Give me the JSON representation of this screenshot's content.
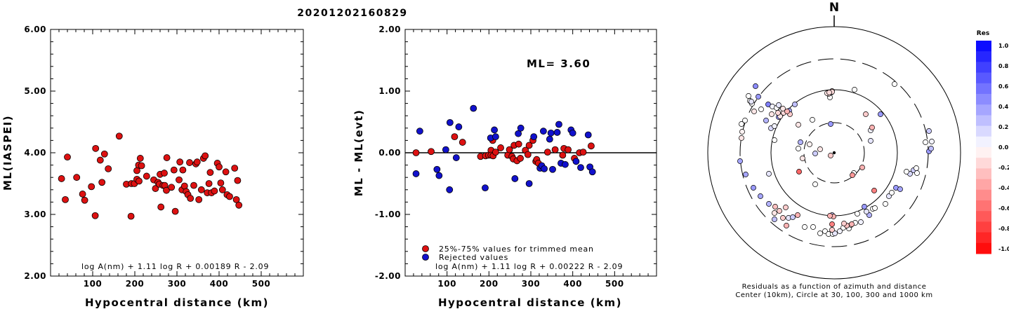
{
  "figure_title": "20201202160829",
  "colors": {
    "red": "#dd1111",
    "blue": "#1111cc"
  },
  "chart_data": [
    {
      "type": "scatter",
      "name": "ml-iaspei-vs-distance",
      "xlabel": "Hypocentral distance (km)",
      "ylabel": "ML(IASPEI)",
      "xlim": [
        0,
        600
      ],
      "ylim": [
        2.0,
        6.0
      ],
      "xticks": [
        "100",
        "200",
        "300",
        "400",
        "500"
      ],
      "yticks": [
        "2.00",
        "3.00",
        "4.00",
        "5.00",
        "6.00"
      ],
      "annotation": "log A(nm) + 1.11 log R + 0.00189 R - 2.09",
      "points": [
        [
          26,
          3.58
        ],
        [
          35,
          3.24
        ],
        [
          40,
          3.93
        ],
        [
          62,
          3.6
        ],
        [
          76,
          3.33
        ],
        [
          81,
          3.23
        ],
        [
          97,
          3.45
        ],
        [
          106,
          2.98
        ],
        [
          107,
          4.07
        ],
        [
          118,
          3.88
        ],
        [
          122,
          3.52
        ],
        [
          128,
          3.98
        ],
        [
          137,
          3.74
        ],
        [
          163,
          4.27
        ],
        [
          180,
          3.49
        ],
        [
          191,
          2.97
        ],
        [
          192,
          3.5
        ],
        [
          199,
          3.5
        ],
        [
          205,
          3.57
        ],
        [
          205,
          3.71
        ],
        [
          209,
          3.8
        ],
        [
          210,
          3.54
        ],
        [
          213,
          3.91
        ],
        [
          216,
          3.79
        ],
        [
          228,
          3.62
        ],
        [
          245,
          3.56
        ],
        [
          249,
          3.42
        ],
        [
          255,
          3.52
        ],
        [
          258,
          3.49
        ],
        [
          260,
          3.65
        ],
        [
          262,
          3.12
        ],
        [
          267,
          3.47
        ],
        [
          270,
          3.67
        ],
        [
          271,
          3.47
        ],
        [
          275,
          3.39
        ],
        [
          276,
          3.92
        ],
        [
          287,
          3.44
        ],
        [
          293,
          3.72
        ],
        [
          296,
          3.05
        ],
        [
          305,
          3.56
        ],
        [
          307,
          3.85
        ],
        [
          312,
          3.4
        ],
        [
          314,
          3.72
        ],
        [
          318,
          3.46
        ],
        [
          322,
          3.37
        ],
        [
          326,
          3.32
        ],
        [
          330,
          3.84
        ],
        [
          332,
          3.26
        ],
        [
          340,
          3.47
        ],
        [
          345,
          3.82
        ],
        [
          348,
          3.85
        ],
        [
          352,
          3.24
        ],
        [
          358,
          3.4
        ],
        [
          363,
          3.91
        ],
        [
          367,
          3.95
        ],
        [
          372,
          3.35
        ],
        [
          376,
          3.5
        ],
        [
          379,
          3.68
        ],
        [
          382,
          3.35
        ],
        [
          389,
          3.38
        ],
        [
          396,
          3.83
        ],
        [
          400,
          3.77
        ],
        [
          404,
          3.51
        ],
        [
          408,
          3.4
        ],
        [
          416,
          3.69
        ],
        [
          419,
          3.32
        ],
        [
          425,
          3.29
        ],
        [
          437,
          3.75
        ],
        [
          441,
          3.24
        ],
        [
          444,
          3.55
        ],
        [
          447,
          3.15
        ]
      ]
    },
    {
      "type": "scatter",
      "name": "ml-residual-vs-distance",
      "xlabel": "Hypocentral distance (km)",
      "ylabel": "ML - ML(evt)",
      "xlim": [
        0,
        600
      ],
      "ylim": [
        -2.0,
        2.0
      ],
      "xticks": [
        "100",
        "200",
        "300",
        "400",
        "500"
      ],
      "yticks": [
        "-2.00",
        "-1.00",
        "0.00",
        "1.00",
        "2.00"
      ],
      "ml_text": "ML= 3.60",
      "legend": [
        "25%-75% values for trimmed mean",
        "Rejected values"
      ],
      "legend_position": "bottom-left",
      "annotation": "log A(nm) + 1.11 log R + 0.00222 R - 2.09",
      "series": [
        {
          "name": "25%-75% values for trimmed mean",
          "color": "#dd1111",
          "points": [
            [
              26,
              0.0
            ],
            [
              62,
              0.02
            ],
            [
              118,
              0.26
            ],
            [
              137,
              0.17
            ],
            [
              180,
              -0.06
            ],
            [
              192,
              -0.05
            ],
            [
              199,
              -0.04
            ],
            [
              205,
              0.04
            ],
            [
              205,
              -0.04
            ],
            [
              209,
              0.2
            ],
            [
              210,
              -0.05
            ],
            [
              216,
              0.01
            ],
            [
              228,
              0.08
            ],
            [
              245,
              -0.04
            ],
            [
              249,
              0.05
            ],
            [
              255,
              -0.06
            ],
            [
              258,
              -0.1
            ],
            [
              260,
              0.12
            ],
            [
              267,
              -0.13
            ],
            [
              271,
              0.14
            ],
            [
              275,
              -0.09
            ],
            [
              287,
              0.04
            ],
            [
              293,
              -0.03
            ],
            [
              296,
              0.12
            ],
            [
              305,
              0.2
            ],
            [
              312,
              -0.14
            ],
            [
              314,
              -0.11
            ],
            [
              318,
              -0.17
            ],
            [
              340,
              0.01
            ],
            [
              358,
              0.05
            ],
            [
              376,
              -0.04
            ],
            [
              379,
              0.07
            ],
            [
              389,
              0.05
            ],
            [
              404,
              -0.09
            ],
            [
              416,
              0.0
            ],
            [
              425,
              0.01
            ],
            [
              444,
              0.11
            ]
          ]
        },
        {
          "name": "Rejected values",
          "color": "#1111cc",
          "points": [
            [
              26,
              -0.34
            ],
            [
              35,
              0.35
            ],
            [
              76,
              -0.27
            ],
            [
              81,
              -0.37
            ],
            [
              97,
              0.05
            ],
            [
              106,
              -0.6
            ],
            [
              107,
              0.49
            ],
            [
              122,
              -0.08
            ],
            [
              128,
              0.42
            ],
            [
              163,
              0.72
            ],
            [
              191,
              -0.57
            ],
            [
              204,
              0.24
            ],
            [
              213,
              0.37
            ],
            [
              216,
              0.26
            ],
            [
              262,
              -0.42
            ],
            [
              270,
              0.31
            ],
            [
              276,
              0.4
            ],
            [
              296,
              -0.5
            ],
            [
              307,
              0.26
            ],
            [
              322,
              -0.25
            ],
            [
              326,
              -0.21
            ],
            [
              330,
              0.35
            ],
            [
              332,
              -0.26
            ],
            [
              345,
              0.22
            ],
            [
              348,
              0.32
            ],
            [
              352,
              -0.27
            ],
            [
              363,
              0.33
            ],
            [
              367,
              0.46
            ],
            [
              372,
              -0.17
            ],
            [
              382,
              -0.19
            ],
            [
              396,
              0.37
            ],
            [
              400,
              0.32
            ],
            [
              408,
              -0.14
            ],
            [
              419,
              -0.24
            ],
            [
              437,
              0.29
            ],
            [
              441,
              -0.23
            ],
            [
              447,
              -0.31
            ]
          ]
        }
      ]
    },
    {
      "type": "scatter",
      "name": "azimuth-distance-residuals",
      "north_label": "N",
      "caption_line1": "Residuals as a function of azimuth and distance",
      "caption_line2": "Center (10km), Circle at 30, 100, 300 and 1000 km",
      "colorbar_title": "Res",
      "colorbar_ticks": [
        "1.0",
        "0.8",
        "0.6",
        "0.4",
        "0.2",
        "0.0",
        "-0.2",
        "-0.4",
        "-0.6",
        "-0.8",
        "-1.0"
      ],
      "points": [
        [
          -97,
          -46,
          0.3
        ],
        [
          -79,
          -51,
          0.4
        ],
        [
          -64,
          -60,
          0.35
        ],
        [
          -90,
          -35,
          0.15
        ],
        [
          -85,
          -38,
          0.05
        ],
        [
          -56,
          -69,
          0.25
        ],
        [
          -112,
          -95,
          0.45
        ],
        [
          -108,
          -80,
          0.4
        ],
        [
          -104,
          -62,
          0.0
        ],
        [
          -94,
          -69,
          0.5
        ],
        [
          -88,
          -66,
          0.05
        ],
        [
          -82,
          -64,
          0.0
        ],
        [
          -79,
          -68,
          0.1
        ],
        [
          -75,
          -61,
          0.0
        ],
        [
          -120,
          -74,
          0.0
        ],
        [
          -117,
          -70,
          0.0
        ],
        [
          -122,
          -81,
          0.0
        ],
        [
          -127,
          -46,
          0.0
        ],
        [
          -132,
          -41,
          0.0
        ],
        [
          -118,
          -73,
          0.1
        ],
        [
          -6,
          -79,
          0.0
        ],
        [
          -4,
          -86,
          0.1
        ],
        [
          29,
          -90,
          0.0
        ],
        [
          86,
          -98,
          0.0
        ],
        [
          66,
          -55,
          0.4
        ],
        [
          -48,
          -15,
          0.3
        ],
        [
          -51,
          -6,
          0.0
        ],
        [
          -31,
          -47,
          0.0
        ],
        [
          -126,
          31,
          0.35
        ],
        [
          -115,
          50,
          0.4
        ],
        [
          -134,
          12,
          0.35
        ],
        [
          28,
          29,
          0.0
        ],
        [
          -5,
          -41,
          0.4
        ],
        [
          -105,
          62,
          0.35
        ],
        [
          -93,
          73,
          0.3
        ],
        [
          -85,
          95,
          0.25
        ],
        [
          -65,
          93,
          0.1
        ],
        [
          -42,
          106,
          0.0
        ],
        [
          -30,
          106,
          0.0
        ],
        [
          -20,
          115,
          0.0
        ],
        [
          -13,
          112,
          0.0
        ],
        [
          -8,
          116,
          0.0
        ],
        [
          -2,
          116,
          0.0
        ],
        [
          1,
          115,
          0.1
        ],
        [
          8,
          112,
          0.05
        ],
        [
          13,
          107,
          0.0
        ],
        [
          21,
          108,
          0.0
        ],
        [
          24,
          103,
          0.0
        ],
        [
          30,
          100,
          0.0
        ],
        [
          38,
          99,
          0.05
        ],
        [
          -3,
          89,
          0.2
        ],
        [
          33,
          87,
          0.0
        ],
        [
          -59,
          92,
          0.2
        ],
        [
          43,
          77,
          0.4
        ],
        [
          50,
          89,
          0.3
        ],
        [
          46,
          84,
          0.1
        ],
        [
          55,
          80,
          0.0
        ],
        [
          58,
          79,
          0.0
        ],
        [
          73,
          73,
          0.0
        ],
        [
          78,
          62,
          0.1
        ],
        [
          82,
          57,
          0.0
        ],
        [
          88,
          50,
          0.4
        ],
        [
          94,
          52,
          0.35
        ],
        [
          108,
          30,
          0.15
        ],
        [
          103,
          27,
          0.0
        ],
        [
          113,
          25,
          0.2
        ],
        [
          117,
          22,
          0.0
        ],
        [
          118,
          29,
          0.0
        ],
        [
          130,
          -15,
          0.0
        ],
        [
          135,
          -2,
          0.4
        ],
        [
          138,
          -6,
          0.25
        ],
        [
          135,
          -31,
          0.2
        ],
        [
          139,
          -16,
          0.05
        ],
        [
          -27,
          45,
          0.0
        ],
        [
          -93,
          30,
          0.1
        ],
        [
          -27,
          1,
          0.2
        ],
        [
          52,
          -32,
          0.05
        ],
        [
          52,
          -17,
          0.1
        ],
        [
          -5,
          4,
          -0.2
        ],
        [
          40,
          21,
          -0.3
        ],
        [
          -68,
          104,
          -0.3
        ],
        [
          -69,
          78,
          -0.2
        ],
        [
          -78,
          83,
          -0.2
        ],
        [
          -1,
          91,
          -0.3
        ],
        [
          -3,
          102,
          -0.5
        ],
        [
          -50,
          27,
          -0.6
        ],
        [
          -84,
          77,
          -0.25
        ],
        [
          -52,
          89,
          -0.3
        ],
        [
          -73,
          93,
          -0.2
        ],
        [
          18,
          104,
          -0.25
        ],
        [
          25,
          102,
          -0.3
        ],
        [
          -3,
          110,
          -0.2
        ],
        [
          14,
          101,
          -0.2
        ],
        [
          -85,
          86,
          -0.1
        ],
        [
          54,
          -36,
          -0.3
        ],
        [
          45,
          -55,
          -0.2
        ],
        [
          -51,
          -40,
          -0.1
        ],
        [
          -85,
          -18,
          0.0
        ],
        [
          -45,
          8,
          -0.1
        ],
        [
          -131,
          -30,
          -0.05
        ],
        [
          -132,
          -21,
          -0.1
        ],
        [
          -114,
          -59,
          -0.1
        ],
        [
          -63,
          -55,
          -0.2
        ],
        [
          -72,
          -57,
          -0.15
        ],
        [
          -67,
          -59,
          -0.3
        ],
        [
          -77,
          -52,
          -0.1
        ],
        [
          -3,
          -88,
          -0.2
        ],
        [
          -8,
          -84,
          -0.1
        ],
        [
          -10,
          -85,
          -0.1
        ],
        [
          26,
          32,
          -0.4
        ],
        [
          -6,
          90,
          -0.3
        ],
        [
          57,
          54,
          -0.5
        ],
        [
          -89,
          -55,
          -0.1
        ],
        [
          -73,
          -63,
          -0.1
        ],
        [
          -35,
          -12,
          -0.05
        ],
        [
          -20,
          -5,
          -0.1
        ],
        [
          -80,
          -57,
          -0.15
        ],
        [
          -3,
          -87,
          -0.15
        ],
        [
          -7,
          -86,
          -0.15
        ]
      ]
    }
  ]
}
